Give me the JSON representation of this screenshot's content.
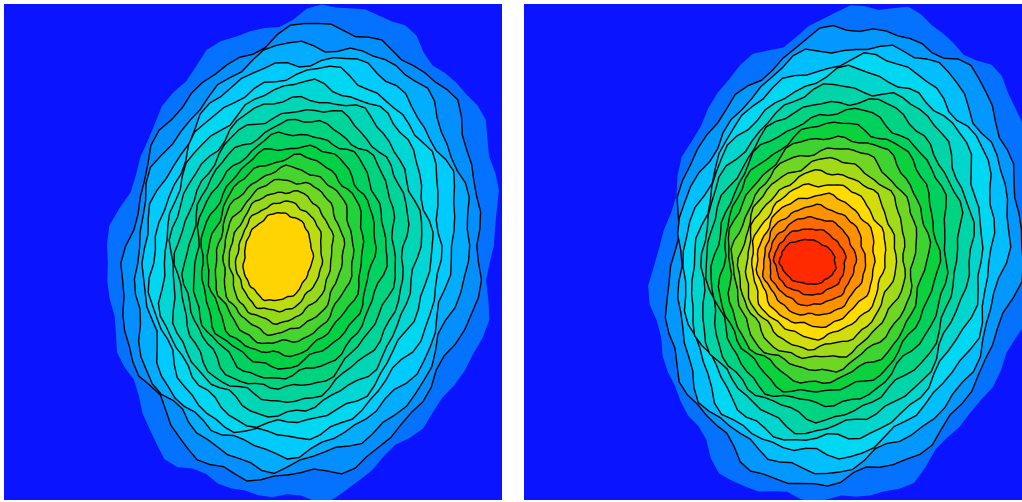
{
  "chart_data": [
    {
      "type": "heatmap",
      "subtype": "filled-contour",
      "title": "",
      "xlabel": "",
      "ylabel": "",
      "axes_visible": false,
      "grid": false,
      "legend": "none",
      "colormap": [
        "#0a14ff",
        "#00d8ff",
        "#00d040",
        "#ffe000",
        "#ff1e00"
      ],
      "contour_line_color": "#000000",
      "contour_levels": 16,
      "peak_relative_intensity": 0.72,
      "peak_color": "#ffc000",
      "center_color": "#ffd400",
      "peak_location_relative": [
        0.55,
        0.51
      ],
      "shape": "single peak, elongated blob"
    },
    {
      "type": "heatmap",
      "subtype": "filled-contour",
      "title": "",
      "xlabel": "",
      "ylabel": "",
      "axes_visible": false,
      "grid": false,
      "legend": "none",
      "colormap": [
        "#0a14ff",
        "#00d8ff",
        "#00d040",
        "#ffe000",
        "#ff1e00"
      ],
      "contour_line_color": "#000000",
      "contour_levels": 18,
      "peak_relative_intensity": 1.0,
      "peak_color": "#ff1e00",
      "center_color": "#ff2a00",
      "peak_location_relative": [
        0.57,
        0.52
      ],
      "shape": "single peak, elongated blob"
    }
  ]
}
